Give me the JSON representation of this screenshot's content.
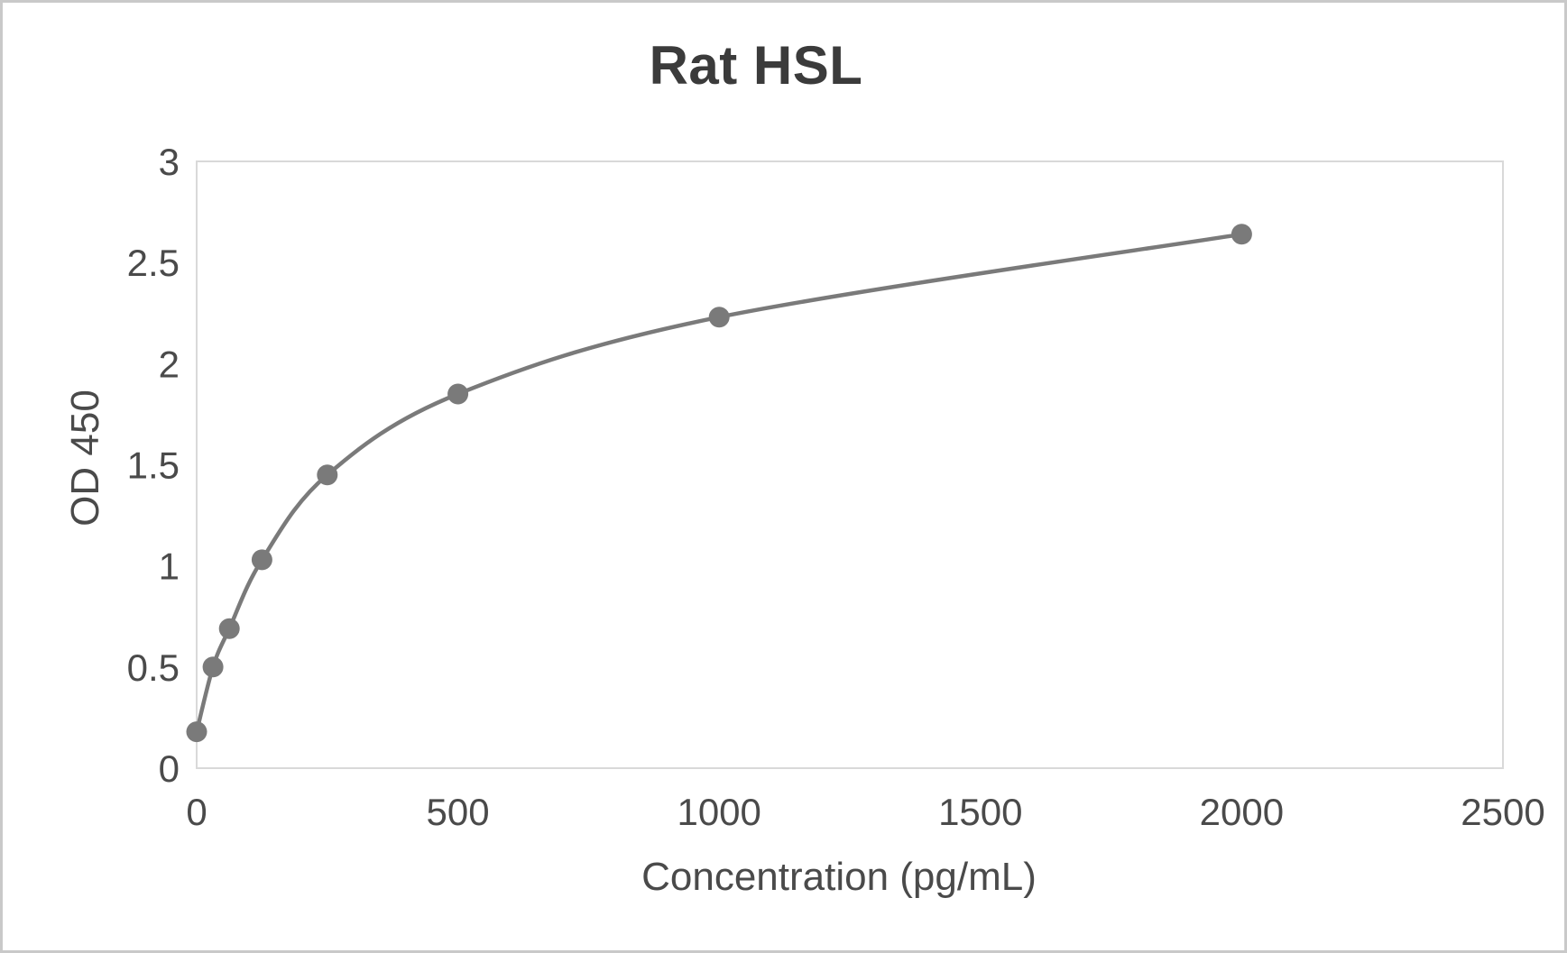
{
  "chart_data": {
    "type": "line",
    "title": "Rat HSL",
    "xlabel": "Concentration (pg/mL)",
    "ylabel": "OD 450",
    "x": [
      0,
      31.25,
      62.5,
      125,
      250,
      500,
      1000,
      2000
    ],
    "series": [
      {
        "values": [
          0.18,
          0.5,
          0.69,
          1.03,
          1.45,
          1.85,
          2.23,
          2.64
        ]
      }
    ],
    "xlim": [
      0,
      2500
    ],
    "ylim": [
      0,
      3
    ],
    "x_ticks": [
      0,
      500,
      1000,
      1500,
      2000,
      2500
    ],
    "y_ticks": [
      0,
      0.5,
      1,
      1.5,
      2,
      2.5,
      3
    ],
    "grid": false,
    "legend": "none",
    "marker": "circle",
    "smooth": true
  },
  "colors": {
    "series": "#7a7a7a",
    "plot_border": "#d9d9d9",
    "tick_text": "#4a4a4a",
    "axis_title_text": "#4a4a4a",
    "chart_title_text": "#3b3b3b",
    "frame_border": "#c9c9c9",
    "background": "#ffffff"
  }
}
